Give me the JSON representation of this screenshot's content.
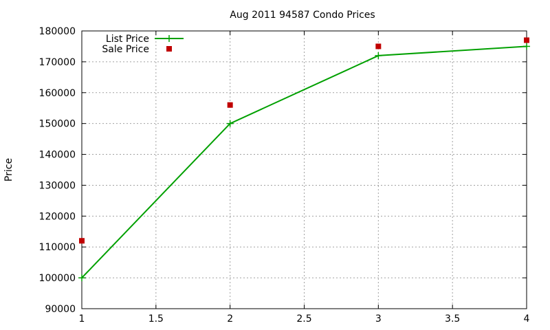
{
  "chart_data": {
    "type": "line",
    "title": "Aug 2011 94587 Condo Prices",
    "xlabel": "",
    "ylabel": "Price",
    "xlim": [
      1,
      4
    ],
    "ylim": [
      90000,
      180000
    ],
    "x_ticks": [
      "1",
      "1.5",
      "2",
      "2.5",
      "3",
      "3.5",
      "4"
    ],
    "y_ticks": [
      "90000",
      "100000",
      "110000",
      "120000",
      "130000",
      "140000",
      "150000",
      "160000",
      "170000",
      "180000"
    ],
    "grid": true,
    "legend_position": "top-left",
    "series": [
      {
        "name": "List Price",
        "style": "line-with-plus-markers",
        "color": "#00a000",
        "x": [
          1,
          2,
          3,
          4
        ],
        "values": [
          100000,
          150000,
          172000,
          175000
        ]
      },
      {
        "name": "Sale Price",
        "style": "square-markers",
        "color": "#c00000",
        "x": [
          1,
          2,
          3,
          4
        ],
        "values": [
          112000,
          156000,
          175000,
          177000
        ]
      }
    ]
  }
}
